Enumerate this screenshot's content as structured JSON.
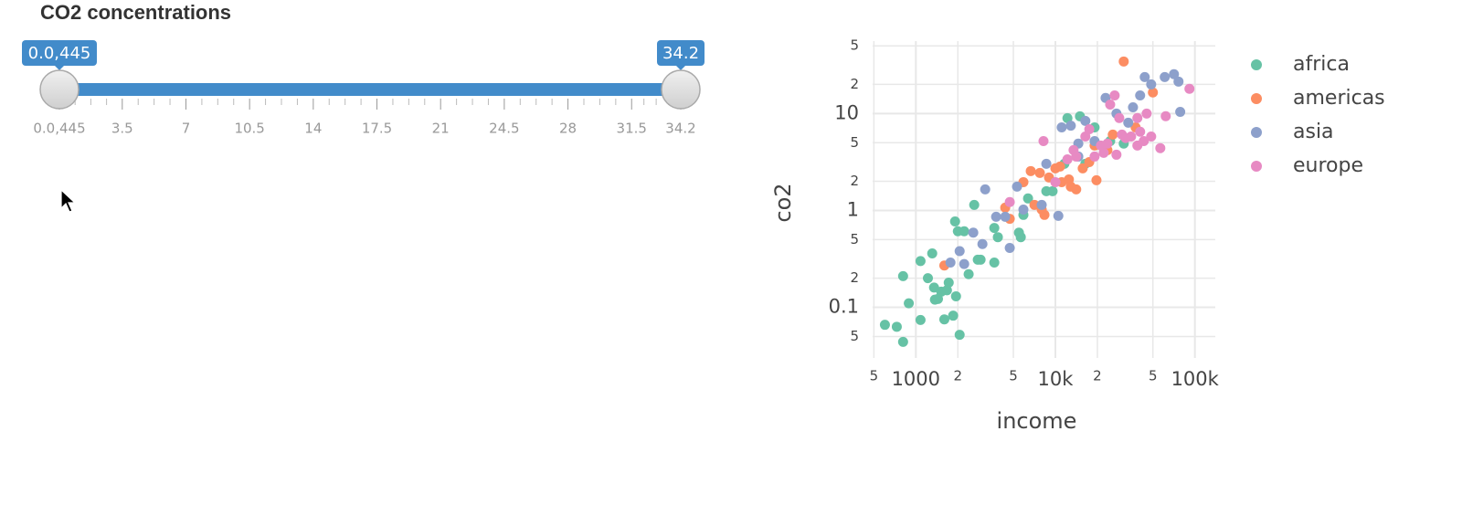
{
  "slider": {
    "title": "CO2 concentrations",
    "min": {
      "value": 0.0445,
      "label": "0.0,445"
    },
    "max": 34.2,
    "from": {
      "value": 0.0445,
      "label": "0.0,445"
    },
    "to": 34.2,
    "ticks": [
      {
        "value": 0.0445,
        "label": "0.0,445"
      },
      3.5,
      7,
      10.5,
      14,
      17.5,
      21,
      24.5,
      28,
      31.5,
      34.2
    ]
  },
  "chart_data": {
    "type": "scatter",
    "x_label": "income",
    "y_label": "co2",
    "xscale": "log",
    "yscale": "log",
    "grid": true,
    "legend_position": "right",
    "xlim": [
      490,
      140000
    ],
    "ylim": [
      0.03,
      56
    ],
    "xticks": [
      {
        "value": 500,
        "label": "5"
      },
      1000,
      {
        "value": 2000,
        "label": "2"
      },
      {
        "value": 5000,
        "label": "5"
      },
      {
        "value": 10000,
        "label": "10k"
      },
      {
        "value": 20000,
        "label": "2"
      },
      {
        "value": 50000,
        "label": "5"
      },
      {
        "value": 100000,
        "label": "100k"
      }
    ],
    "yticks": [
      {
        "value": 0.05,
        "label": "5"
      },
      0.1,
      {
        "value": 0.2,
        "label": "2"
      },
      {
        "value": 0.5,
        "label": "5"
      },
      1,
      {
        "value": 2,
        "label": "2"
      },
      {
        "value": 5,
        "label": "5"
      },
      10,
      {
        "value": 20,
        "label": "2"
      },
      {
        "value": 50,
        "label": "5"
      }
    ],
    "series": [
      {
        "name": "africa",
        "color": "#66c2a5",
        "x": [
          600,
          730,
          810,
          810,
          890,
          1080,
          1080,
          1220,
          1310,
          1350,
          1370,
          1440,
          1520,
          1600,
          1670,
          1720,
          1850,
          1940,
          1910,
          2000,
          2060,
          2220,
          2390,
          2620,
          2780,
          2910,
          3650,
          3650,
          3870,
          5480,
          5650,
          5900,
          6370,
          8610,
          9550,
          11600,
          12200,
          15000,
          16400,
          19100,
          24700,
          30900
        ],
        "values": [
          0.066,
          0.063,
          0.044,
          0.21,
          0.11,
          0.074,
          0.3,
          0.2,
          0.36,
          0.16,
          0.12,
          0.122,
          0.145,
          0.075,
          0.15,
          0.18,
          0.082,
          0.13,
          0.77,
          0.61,
          0.052,
          0.61,
          0.22,
          1.14,
          0.31,
          0.31,
          0.29,
          0.66,
          0.53,
          0.59,
          0.53,
          0.9,
          1.33,
          1.58,
          1.58,
          3.03,
          8.97,
          9.37,
          3.03,
          7.2,
          5.2,
          4.9
        ]
      },
      {
        "name": "americas",
        "color": "#fc8d62",
        "x": [
          1600,
          4370,
          4710,
          5900,
          6660,
          7080,
          7740,
          7980,
          8350,
          9000,
          10000,
          10800,
          11100,
          12500,
          12900,
          14100,
          15700,
          17500,
          19100,
          19700,
          23600,
          30900,
          50000,
          37600,
          25800
        ],
        "values": [
          0.27,
          1.07,
          0.82,
          1.96,
          2.55,
          1.14,
          2.44,
          1.02,
          0.9,
          2.19,
          2.72,
          2.84,
          1.96,
          2.09,
          1.76,
          1.65,
          2.72,
          3.16,
          4.68,
          2.05,
          4.2,
          34.5,
          16.5,
          7.2,
          6.07
        ]
      },
      {
        "name": "asia",
        "color": "#8da0cb",
        "x": [
          1770,
          2060,
          2220,
          2580,
          3000,
          3140,
          3760,
          4370,
          4710,
          5310,
          5900,
          7980,
          8610,
          10500,
          11100,
          12900,
          14600,
          16400,
          19100,
          22900,
          27400,
          33300,
          36000,
          40500,
          43700,
          48600,
          60800,
          70800,
          76300,
          78500,
          14600
        ],
        "values": [
          0.29,
          0.38,
          0.28,
          0.59,
          0.45,
          1.65,
          0.86,
          0.86,
          0.41,
          1.76,
          1.02,
          1.14,
          3.03,
          0.88,
          7.2,
          7.5,
          4.9,
          8.4,
          5.2,
          14.5,
          10,
          8.05,
          11.6,
          15.4,
          23.8,
          20,
          23.8,
          25.5,
          21.4,
          10.4,
          3.6
        ]
      },
      {
        "name": "europe",
        "color": "#e78ac3",
        "x": [
          4710,
          8220,
          10000,
          12200,
          13500,
          14100,
          16400,
          17500,
          19100,
          22200,
          23600,
          24700,
          26600,
          28700,
          30000,
          31900,
          34900,
          38700,
          40500,
          43000,
          45100,
          48600,
          56500,
          61800,
          91400,
          27400,
          21200,
          38700
        ],
        "values": [
          1.22,
          5.2,
          1.96,
          3.37,
          4.2,
          3.6,
          5.8,
          6.9,
          3.6,
          3.93,
          4.9,
          12.4,
          15.4,
          9.0,
          6.07,
          5.6,
          5.8,
          9.0,
          6.5,
          5.2,
          10,
          5.8,
          4.4,
          9.4,
          18,
          3.76,
          4.68,
          4.68
        ]
      }
    ]
  }
}
